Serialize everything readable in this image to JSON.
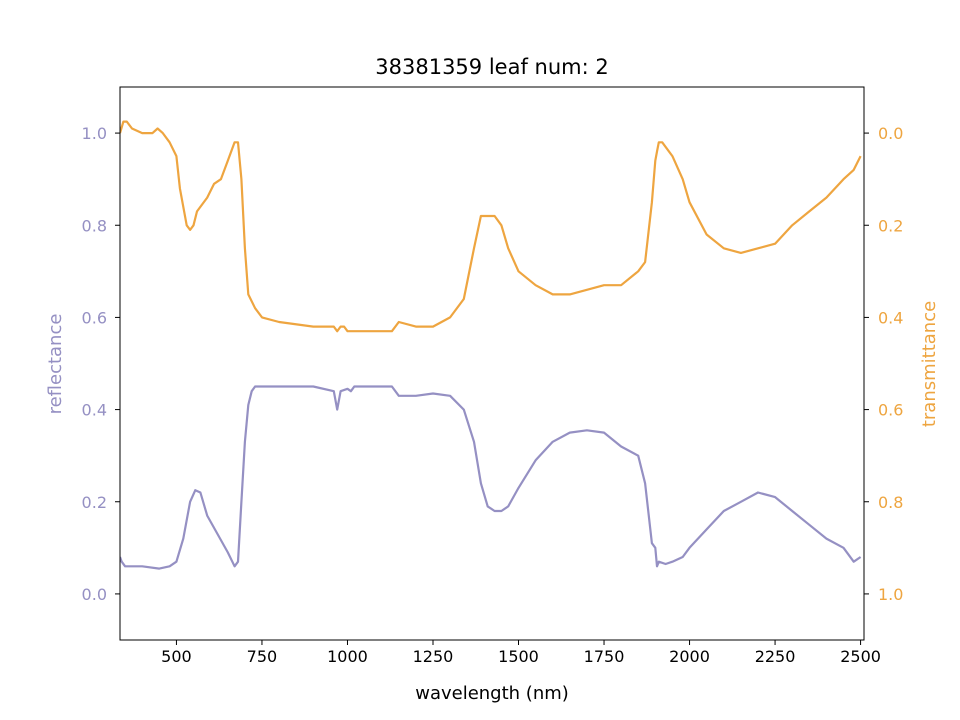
{
  "chart_data": {
    "type": "line",
    "title": "38381359 leaf num: 2",
    "xlabel": "wavelength (nm)",
    "ylabel_left": "reflectance",
    "ylabel_right": "transmittance",
    "xlim": [
      335,
      2510
    ],
    "ylim_left": [
      -0.1,
      1.1
    ],
    "ylim_right": [
      1.1,
      -0.1
    ],
    "right_axis_inverted": true,
    "grid": false,
    "x_ticks": [
      500,
      750,
      1000,
      1250,
      1500,
      1750,
      2000,
      2250,
      2500
    ],
    "x_tick_labels": [
      "500",
      "750",
      "1000",
      "1250",
      "1500",
      "1750",
      "2000",
      "2250",
      "2500"
    ],
    "left_ticks": [
      0.0,
      0.2,
      0.4,
      0.6,
      0.8,
      1.0
    ],
    "left_tick_labels": [
      "0.0",
      "0.2",
      "0.4",
      "0.6",
      "0.8",
      "1.0"
    ],
    "right_ticks": [
      0.0,
      0.2,
      0.4,
      0.6,
      0.8,
      1.0
    ],
    "right_tick_labels": [
      "0.0",
      "0.2",
      "0.4",
      "0.6",
      "0.8",
      "1.0"
    ],
    "colors": {
      "reflectance": "#9590c3",
      "transmittance": "#eea540",
      "axes": "#000000"
    },
    "series": [
      {
        "axis": "left",
        "x": [
          335,
          340,
          350,
          400,
          450,
          480,
          500,
          520,
          540,
          555,
          570,
          590,
          620,
          650,
          670,
          680,
          690,
          700,
          710,
          720,
          730,
          750,
          800,
          900,
          960,
          970,
          975,
          980,
          1000,
          1010,
          1020,
          1050,
          1100,
          1130,
          1150,
          1200,
          1250,
          1300,
          1340,
          1370,
          1390,
          1410,
          1430,
          1450,
          1470,
          1500,
          1550,
          1600,
          1650,
          1700,
          1750,
          1800,
          1850,
          1870,
          1890,
          1900,
          1905,
          1910,
          1930,
          1950,
          1980,
          2000,
          2050,
          2100,
          2150,
          2200,
          2250,
          2300,
          2350,
          2400,
          2450,
          2480,
          2500
        ],
        "y": [
          0.08,
          0.07,
          0.06,
          0.06,
          0.055,
          0.06,
          0.07,
          0.12,
          0.2,
          0.225,
          0.22,
          0.17,
          0.13,
          0.09,
          0.06,
          0.07,
          0.2,
          0.33,
          0.41,
          0.44,
          0.45,
          0.45,
          0.45,
          0.45,
          0.44,
          0.4,
          0.42,
          0.44,
          0.445,
          0.44,
          0.45,
          0.45,
          0.45,
          0.45,
          0.43,
          0.43,
          0.435,
          0.43,
          0.4,
          0.33,
          0.24,
          0.19,
          0.18,
          0.18,
          0.19,
          0.23,
          0.29,
          0.33,
          0.35,
          0.355,
          0.35,
          0.32,
          0.3,
          0.24,
          0.11,
          0.1,
          0.06,
          0.07,
          0.065,
          0.07,
          0.08,
          0.1,
          0.14,
          0.18,
          0.2,
          0.22,
          0.21,
          0.18,
          0.15,
          0.12,
          0.1,
          0.07,
          0.08
        ]
      },
      {
        "axis": "right",
        "x": [
          335,
          345,
          355,
          370,
          400,
          430,
          445,
          460,
          480,
          500,
          510,
          530,
          540,
          550,
          560,
          590,
          610,
          630,
          650,
          670,
          680,
          690,
          700,
          710,
          730,
          750,
          800,
          900,
          960,
          970,
          980,
          990,
          1000,
          1050,
          1100,
          1130,
          1150,
          1200,
          1250,
          1300,
          1340,
          1370,
          1390,
          1410,
          1430,
          1450,
          1470,
          1500,
          1550,
          1600,
          1650,
          1700,
          1750,
          1800,
          1850,
          1870,
          1890,
          1900,
          1905,
          1910,
          1920,
          1950,
          1980,
          2000,
          2050,
          2100,
          2150,
          2200,
          2250,
          2300,
          2350,
          2400,
          2450,
          2480,
          2500
        ],
        "y": [
          0.0,
          -0.025,
          -0.025,
          -0.01,
          0.0,
          0.0,
          -0.01,
          0.0,
          0.02,
          0.05,
          0.12,
          0.2,
          0.21,
          0.2,
          0.17,
          0.14,
          0.11,
          0.1,
          0.06,
          0.02,
          0.02,
          0.1,
          0.25,
          0.35,
          0.38,
          0.4,
          0.41,
          0.42,
          0.42,
          0.43,
          0.42,
          0.42,
          0.43,
          0.43,
          0.43,
          0.43,
          0.41,
          0.42,
          0.42,
          0.4,
          0.36,
          0.25,
          0.18,
          0.18,
          0.18,
          0.2,
          0.25,
          0.3,
          0.33,
          0.35,
          0.35,
          0.34,
          0.33,
          0.33,
          0.3,
          0.28,
          0.15,
          0.06,
          0.04,
          0.02,
          0.02,
          0.05,
          0.1,
          0.15,
          0.22,
          0.25,
          0.26,
          0.25,
          0.24,
          0.2,
          0.17,
          0.14,
          0.1,
          0.08,
          0.05
        ]
      }
    ]
  }
}
